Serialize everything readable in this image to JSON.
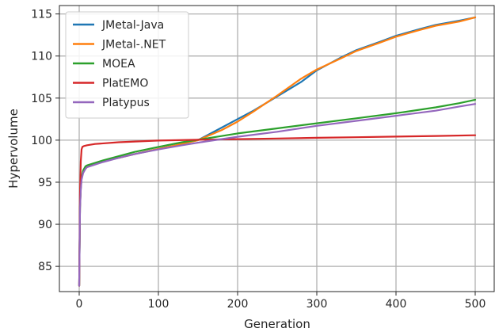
{
  "chart_data": {
    "type": "line",
    "title": "",
    "xlabel": "Generation",
    "ylabel": "Hypervolume",
    "xlim": [
      -25,
      525
    ],
    "ylim": [
      82,
      116
    ],
    "xticks": [
      0,
      100,
      200,
      300,
      400,
      500
    ],
    "yticks": [
      85,
      90,
      95,
      100,
      105,
      110,
      115
    ],
    "grid": true,
    "legend_position": "top-left",
    "series": [
      {
        "name": "JMetal-Java",
        "color": "#1f77b4",
        "x": [
          0,
          1,
          2,
          3,
          5,
          8,
          10,
          20,
          30,
          50,
          70,
          100,
          120,
          150,
          160,
          180,
          200,
          220,
          250,
          280,
          300,
          330,
          350,
          380,
          400,
          430,
          450,
          480,
          500
        ],
        "y": [
          82.7,
          92.0,
          94.3,
          95.5,
          96.3,
          96.8,
          96.95,
          97.2,
          97.5,
          97.9,
          98.35,
          98.95,
          99.35,
          100.0,
          100.5,
          101.5,
          102.5,
          103.5,
          105.2,
          106.9,
          108.3,
          109.8,
          110.7,
          111.7,
          112.4,
          113.2,
          113.7,
          114.2,
          114.6
        ]
      },
      {
        "name": "JMetal-.NET",
        "color": "#ff7f0e",
        "x": [
          0,
          1,
          2,
          3,
          5,
          8,
          10,
          20,
          30,
          50,
          70,
          100,
          120,
          150,
          160,
          180,
          200,
          220,
          250,
          280,
          300,
          330,
          350,
          380,
          400,
          430,
          450,
          480,
          500
        ],
        "y": [
          82.7,
          92.0,
          94.3,
          95.5,
          96.3,
          96.8,
          96.95,
          97.2,
          97.5,
          97.9,
          98.35,
          98.95,
          99.35,
          100.0,
          100.4,
          101.2,
          102.2,
          103.4,
          105.3,
          107.3,
          108.4,
          109.7,
          110.6,
          111.6,
          112.3,
          113.1,
          113.6,
          114.1,
          114.6
        ]
      },
      {
        "name": "MOEA",
        "color": "#2ca02c",
        "x": [
          0,
          1,
          2,
          3,
          5,
          8,
          10,
          20,
          30,
          50,
          70,
          100,
          130,
          160,
          200,
          250,
          300,
          350,
          400,
          450,
          480,
          500
        ],
        "y": [
          82.7,
          92.2,
          94.5,
          95.6,
          96.4,
          96.9,
          97.0,
          97.3,
          97.6,
          98.1,
          98.6,
          99.2,
          99.75,
          100.2,
          100.8,
          101.4,
          102.0,
          102.6,
          103.2,
          103.9,
          104.4,
          104.8
        ]
      },
      {
        "name": "PlatEMO",
        "color": "#d62728",
        "x": [
          0,
          1,
          2,
          3,
          4,
          6,
          10,
          20,
          50,
          100,
          150,
          200,
          250,
          300,
          350,
          400,
          450,
          500
        ],
        "y": [
          82.7,
          93.5,
          97.5,
          98.9,
          99.2,
          99.3,
          99.4,
          99.55,
          99.75,
          99.95,
          100.05,
          100.12,
          100.2,
          100.28,
          100.35,
          100.42,
          100.5,
          100.58
        ]
      },
      {
        "name": "Platypus",
        "color": "#9467bd",
        "x": [
          0,
          1,
          2,
          3,
          5,
          8,
          10,
          20,
          30,
          50,
          70,
          100,
          130,
          160,
          200,
          250,
          300,
          350,
          400,
          450,
          480,
          500
        ],
        "y": [
          82.7,
          91.8,
          94.1,
          95.3,
          96.1,
          96.6,
          96.8,
          97.1,
          97.4,
          97.9,
          98.35,
          98.9,
          99.4,
          99.85,
          100.4,
          101.0,
          101.7,
          102.3,
          102.9,
          103.5,
          104.0,
          104.3
        ]
      }
    ]
  }
}
